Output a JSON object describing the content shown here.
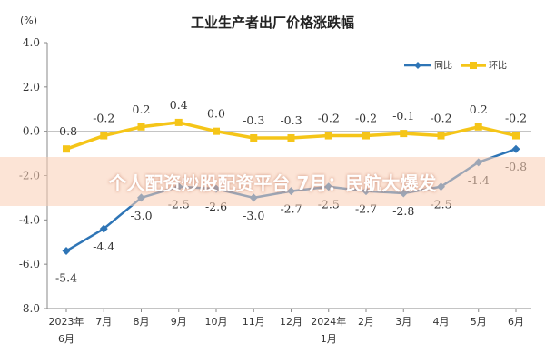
{
  "unit_label": "(%)",
  "watermark": "个人配资炒股配资平台 7月：民航大爆发",
  "chart_data": {
    "type": "line",
    "title": "工业生产者出厂价格涨跌幅",
    "categories": [
      [
        "2023年",
        "6月"
      ],
      [
        "7月"
      ],
      [
        "8月"
      ],
      [
        "9月"
      ],
      [
        "10月"
      ],
      [
        "11月"
      ],
      [
        "12月"
      ],
      [
        "2024年",
        "1月"
      ],
      [
        "2月"
      ],
      [
        "3月"
      ],
      [
        "4月"
      ],
      [
        "5月"
      ],
      [
        "6月"
      ]
    ],
    "ylim": [
      -8.0,
      4.0
    ],
    "yticks": [
      "4.0",
      "2.0",
      "0.0",
      "-2.0",
      "-4.0",
      "-6.0",
      "-8.0"
    ],
    "legend_position": "top-right",
    "series": [
      {
        "name": "同比",
        "color": "#2e75b6",
        "values": [
          -5.4,
          -4.4,
          -3.0,
          -2.5,
          -2.6,
          -3.0,
          -2.7,
          -2.5,
          -2.7,
          -2.8,
          -2.5,
          -1.4,
          -0.8
        ],
        "labels": [
          "-5.4",
          "-4.4",
          "-3.0",
          "-2.5",
          "-2.6",
          "-3.0",
          "-2.7",
          "-2.5",
          "-2.7",
          "-2.8",
          "-2.5",
          "-1.4",
          "-0.8"
        ]
      },
      {
        "name": "环比",
        "color": "#f5c518",
        "values": [
          -0.8,
          -0.2,
          0.2,
          0.4,
          0.0,
          -0.3,
          -0.3,
          -0.2,
          -0.2,
          -0.1,
          -0.2,
          0.2,
          -0.2
        ],
        "labels": [
          "-0.8",
          "-0.2",
          "0.2",
          "0.4",
          "0.0",
          "-0.3",
          "-0.3",
          "-0.2",
          "-0.2",
          "-0.1",
          "-0.2",
          "0.2",
          "-0.2"
        ]
      }
    ]
  }
}
